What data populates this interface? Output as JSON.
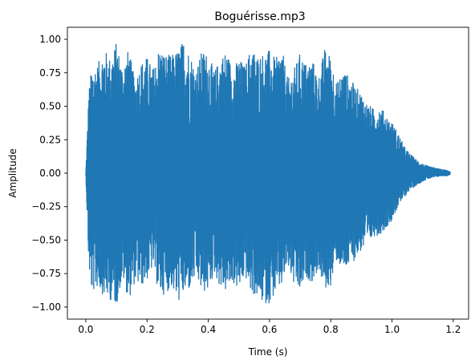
{
  "chart_data": {
    "type": "line",
    "title": "Boguérisse.mp3",
    "xlabel": "Time (s)",
    "ylabel": "Amplitude",
    "xlim": [
      -0.06,
      1.25
    ],
    "ylim": [
      -1.09,
      1.09
    ],
    "xticks": [
      0.0,
      0.2,
      0.4,
      0.6,
      0.8,
      1.0,
      1.2
    ],
    "xtick_labels": [
      "0.0",
      "0.2",
      "0.4",
      "0.6",
      "0.8",
      "1.0",
      "1.2"
    ],
    "yticks": [
      1.0,
      0.75,
      0.5,
      0.25,
      0.0,
      -0.25,
      -0.5,
      -0.75,
      -1.0
    ],
    "ytick_labels": [
      "1.00",
      "0.75",
      "0.50",
      "0.25",
      "0.00",
      "−0.25",
      "−0.50",
      "−0.75",
      "−1.00"
    ],
    "grid": false,
    "legend": false,
    "line_color": "#1f77b4",
    "series": [
      {
        "x": [
          0.0,
          0.01,
          0.02,
          0.04,
          0.06,
          0.08,
          0.1,
          0.12,
          0.14,
          0.16,
          0.18,
          0.2,
          0.22,
          0.24,
          0.26,
          0.28,
          0.3,
          0.32,
          0.34,
          0.36,
          0.38,
          0.4,
          0.42,
          0.44,
          0.46,
          0.48,
          0.5,
          0.52,
          0.54,
          0.56,
          0.58,
          0.6,
          0.62,
          0.64,
          0.66,
          0.68,
          0.7,
          0.72,
          0.74,
          0.76,
          0.78,
          0.8,
          0.82,
          0.84,
          0.86,
          0.88,
          0.9,
          0.92,
          0.94,
          0.96,
          0.98,
          1.0,
          1.02,
          1.04,
          1.06,
          1.08,
          1.1,
          1.12,
          1.14,
          1.16,
          1.18,
          1.19
        ],
        "upper": [
          0.0,
          0.62,
          0.8,
          0.82,
          0.93,
          0.86,
          0.98,
          0.8,
          0.93,
          0.7,
          0.83,
          0.87,
          0.78,
          0.95,
          0.89,
          0.88,
          0.92,
          1.0,
          0.9,
          0.78,
          0.92,
          0.89,
          0.76,
          0.87,
          0.92,
          0.78,
          0.86,
          0.8,
          0.95,
          0.88,
          0.9,
          0.92,
          0.85,
          0.94,
          0.7,
          0.78,
          0.9,
          0.82,
          0.85,
          0.72,
          0.93,
          0.88,
          0.67,
          0.78,
          0.72,
          0.65,
          0.6,
          0.52,
          0.48,
          0.5,
          0.44,
          0.38,
          0.3,
          0.2,
          0.14,
          0.1,
          0.07,
          0.05,
          0.04,
          0.03,
          0.02,
          0.01
        ],
        "lower": [
          0.0,
          -0.72,
          -0.9,
          -0.85,
          -0.92,
          -0.95,
          -0.99,
          -0.78,
          -0.95,
          -0.82,
          -0.85,
          -0.8,
          -0.7,
          -0.92,
          -0.9,
          -0.85,
          -0.97,
          -0.91,
          -0.87,
          -0.78,
          -0.9,
          -0.88,
          -0.75,
          -0.86,
          -0.89,
          -0.82,
          -0.88,
          -0.77,
          -0.9,
          -0.93,
          -0.98,
          -0.97,
          -0.9,
          -0.85,
          -0.7,
          -0.85,
          -0.9,
          -0.78,
          -0.82,
          -0.72,
          -0.88,
          -0.84,
          -0.65,
          -0.74,
          -0.7,
          -0.64,
          -0.58,
          -0.55,
          -0.47,
          -0.46,
          -0.41,
          -0.35,
          -0.25,
          -0.18,
          -0.12,
          -0.09,
          -0.06,
          -0.04,
          -0.03,
          -0.02,
          -0.02,
          -0.01
        ]
      }
    ]
  }
}
